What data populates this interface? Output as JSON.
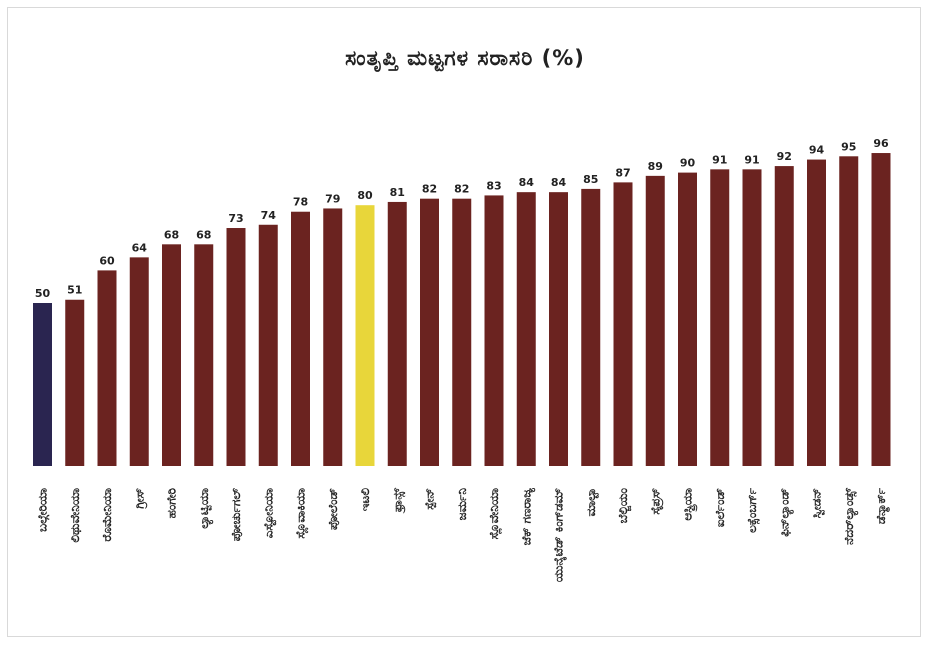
{
  "chart_data": {
    "type": "bar",
    "title": "ಸಂತೃಪ್ತಿ ಮಟ್ಟಗಳ ಸರಾಸರಿ (%)",
    "categories": [
      "ಬಲ್ಗೇರಿಯಾ",
      "ಲಿಥುವೇನಿಯಾ",
      "ರೊಮೇನಿಯಾ",
      "ಗ್ರೀಸ್",
      "ಹಂಗೇರಿ",
      "ಲ್ಯಾಟ್ವಿಯಾ",
      "ಪೋರ್ಚುಗಲ್",
      "ಎಸ್ಟೋನಿಯಾ",
      "ಸ್ಲೊವಾಕಿಯಾ",
      "ಪೋಲೆಂಡ್",
      "ಇಟಲಿ",
      "ಫ್ರಾನ್ಸ್",
      "ಸ್ಪೇನ್",
      "ಜರ್ಮನಿ",
      "ಸ್ಲೊವೇನಿಯಾ",
      "ಜೆಕ್ ಗಣರಾಜ್ಯ",
      "ಯುನೈಟೆಡ್ ಕಿಂಗ್‌ಡಮ್",
      "ಮಾಲ್ಟಾ",
      "ಬೆಲ್ಜಿಯಂ",
      "ಸೈಪ್ರಸ್",
      "ಆಸ್ಟ್ರಿಯಾ",
      "ಐರ್ಲೆಂಡ್",
      "ಲಕ್ಸೆಂಬರ್ಗ್",
      "ಫಿನ್‌ಲ್ಯಾಂಡ್",
      "ಸ್ವೀಡನ್",
      "ನೆದರ್‌ಲ್ಯಾಂಡ್ಸ್",
      "ಡೆನ್ಮಾರ್ಕ್"
    ],
    "values": [
      50,
      51,
      60,
      64,
      68,
      68,
      73,
      74,
      78,
      79,
      80,
      81,
      82,
      82,
      83,
      84,
      84,
      85,
      87,
      89,
      90,
      91,
      91,
      92,
      94,
      95,
      96
    ],
    "highlight_index": 10,
    "colors": {
      "default": "#6b2320",
      "first": "#2a2550",
      "highlight": "#e8d63a"
    },
    "ylim": [
      0,
      100
    ],
    "xlabel": "",
    "ylabel": "",
    "grid": false
  }
}
